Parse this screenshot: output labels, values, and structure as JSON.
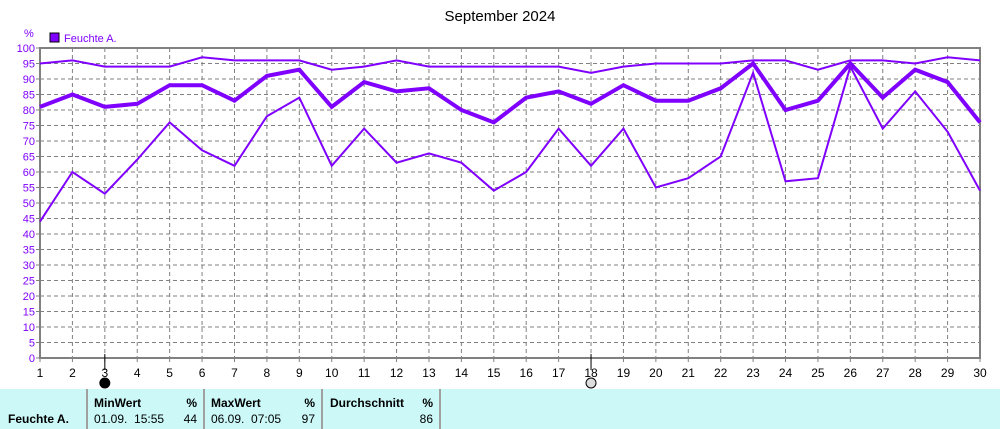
{
  "chart_data": {
    "type": "line",
    "title": "September 2024",
    "ylabel": "%",
    "legend": {
      "label": "Feuchte A.",
      "placement": "top-left"
    },
    "color": "#8000ff",
    "grid": true,
    "xlim": [
      1,
      30
    ],
    "ylim": [
      0,
      100
    ],
    "x": [
      1,
      2,
      3,
      4,
      5,
      6,
      7,
      8,
      9,
      10,
      11,
      12,
      13,
      14,
      15,
      16,
      17,
      18,
      19,
      20,
      21,
      22,
      23,
      24,
      25,
      26,
      27,
      28,
      29,
      30
    ],
    "yticks": [
      0,
      5,
      10,
      15,
      20,
      25,
      30,
      35,
      40,
      45,
      50,
      55,
      60,
      65,
      70,
      75,
      80,
      85,
      90,
      95,
      100
    ],
    "series": [
      {
        "values": [
          95,
          96,
          94,
          94,
          94,
          97,
          96,
          96,
          96,
          93,
          94,
          96,
          94,
          94,
          94,
          94,
          94,
          92,
          94,
          95,
          95,
          95,
          96,
          96,
          93,
          96,
          96,
          95,
          97,
          96
        ]
      },
      {
        "values": [
          81,
          85,
          81,
          82,
          88,
          88,
          83,
          91,
          93,
          81,
          89,
          86,
          87,
          80,
          76,
          84,
          86,
          82,
          88,
          83,
          83,
          87,
          95,
          80,
          83,
          95,
          84,
          93,
          89,
          76
        ]
      },
      {
        "values": [
          44,
          60,
          53,
          64,
          76,
          67,
          62,
          78,
          84,
          62,
          74,
          63,
          66,
          63,
          54,
          60,
          74,
          62,
          74,
          55,
          58,
          65,
          92,
          57,
          58,
          94,
          74,
          86,
          73,
          54
        ]
      }
    ],
    "markers": [
      {
        "x": 3,
        "style": "filled"
      },
      {
        "x": 18,
        "style": "hollow"
      }
    ]
  },
  "stats": {
    "row_label": "Feuchte A.",
    "min": {
      "label": "MinWert",
      "unit": "%",
      "time": "01.09.  15:55",
      "value": "44"
    },
    "max": {
      "label": "MaxWert",
      "unit": "%",
      "time": "06.09.  07:05",
      "value": "97"
    },
    "avg": {
      "label": "Durchschnitt",
      "unit": "%",
      "value": "86"
    }
  }
}
